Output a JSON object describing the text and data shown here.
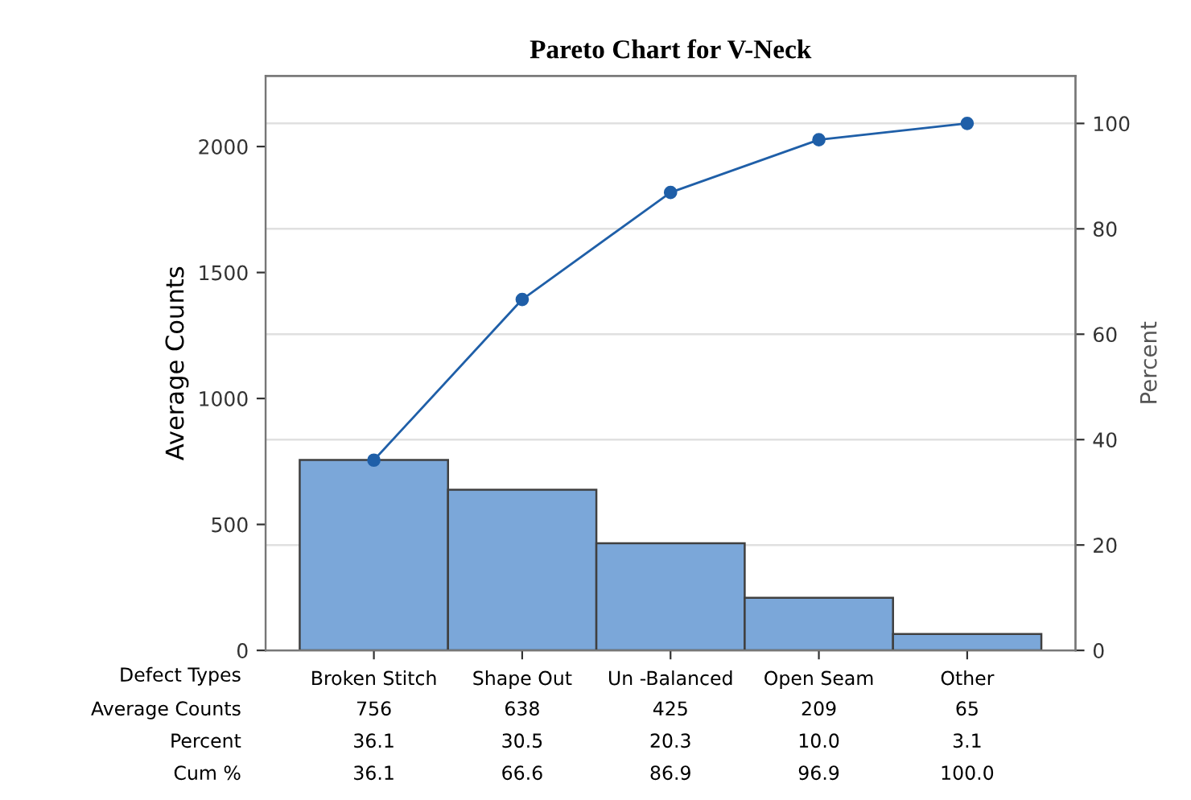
{
  "chart_data": {
    "type": "bar",
    "title": "Pareto Chart for V-Neck",
    "xlabel": "Defect Types",
    "ylabel": "Average Counts",
    "y2label": "Percent",
    "categories": [
      "Broken Stitch",
      "Shape Out",
      "Un -Balanced",
      "Open Seam",
      "Other"
    ],
    "series": [
      {
        "color": "#7ba7d9",
        "values": [
          756,
          638,
          425,
          209,
          65
        ]
      },
      {
        "type": "line",
        "axis": "y2",
        "color": "#1f5fa8",
        "values": [
          36.1,
          66.6,
          86.9,
          96.9,
          100.0
        ]
      }
    ],
    "annotations": [
      "Average Counts",
      "756",
      "638",
      "425",
      "209",
      "65",
      "Percent",
      "36.1",
      "30.5",
      "20.3",
      "10.0",
      "3.1",
      "Cum %",
      "36.1",
      "66.6",
      "86.9",
      "96.9",
      "100.0"
    ],
    "ylim": [
      0,
      2280
    ],
    "yticks": [
      0,
      500,
      1000,
      1500,
      2000
    ],
    "y2lim": [
      0,
      109
    ],
    "y2ticks": [
      0,
      20,
      40,
      60,
      80,
      100
    ],
    "grid": "y2",
    "legend": false,
    "marker": "circle",
    "line_style": "solid"
  }
}
